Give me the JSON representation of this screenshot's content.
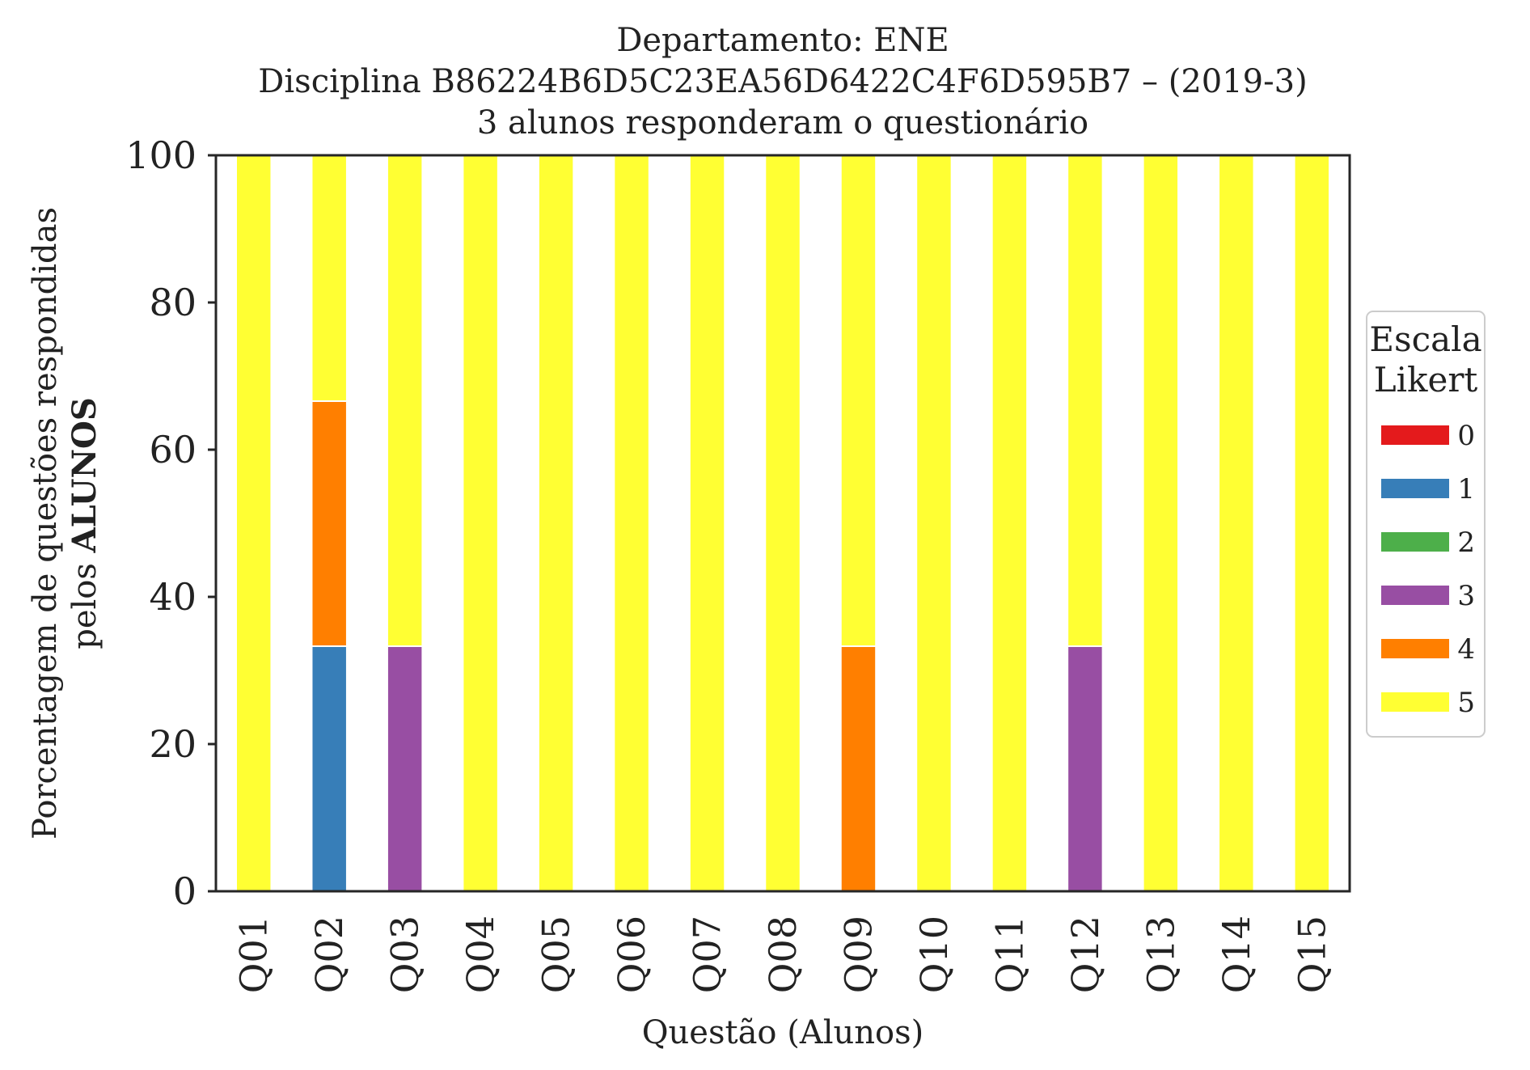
{
  "chart_data": {
    "type": "bar",
    "stacked": true,
    "title_lines": [
      "Departamento: ENE",
      "Disciplina B86224B6D5C23EA56D6422C4F6D595B7 – (2019-3)",
      "3 alunos responderam o questionário"
    ],
    "xlabel": "Questão (Alunos)",
    "ylabel_line1": "Porcentagem de questões respondidas",
    "ylabel_line2_prefix": "pelos ",
    "ylabel_line2_bold": "ALUNOS",
    "ylim": [
      0,
      100
    ],
    "yticks": [
      "0",
      "20",
      "40",
      "60",
      "80",
      "100"
    ],
    "categories": [
      "Q01",
      "Q02",
      "Q03",
      "Q04",
      "Q05",
      "Q06",
      "Q07",
      "Q08",
      "Q09",
      "Q10",
      "Q11",
      "Q12",
      "Q13",
      "Q14",
      "Q15"
    ],
    "legend": {
      "title_line1": "Escala",
      "title_line2": "Likert",
      "placement": "right-center"
    },
    "grid": false,
    "series": [
      {
        "name": "0",
        "color": "#e41a1c",
        "values": [
          0,
          0,
          0,
          0,
          0,
          0,
          0,
          0,
          0,
          0,
          0,
          0,
          0,
          0,
          0
        ]
      },
      {
        "name": "1",
        "color": "#377eb8",
        "values": [
          0,
          33.3,
          0,
          0,
          0,
          0,
          0,
          0,
          0,
          0,
          0,
          0,
          0,
          0,
          0
        ]
      },
      {
        "name": "2",
        "color": "#4daf4a",
        "values": [
          0,
          0,
          0,
          0,
          0,
          0,
          0,
          0,
          0,
          0,
          0,
          0,
          0,
          0,
          0
        ]
      },
      {
        "name": "3",
        "color": "#984ea3",
        "values": [
          0,
          0,
          33.3,
          0,
          0,
          0,
          0,
          0,
          0,
          0,
          0,
          33.3,
          0,
          0,
          0
        ]
      },
      {
        "name": "4",
        "color": "#ff7f00",
        "values": [
          0,
          33.3,
          0,
          0,
          0,
          0,
          0,
          0,
          33.3,
          0,
          0,
          0,
          0,
          0,
          0
        ]
      },
      {
        "name": "5",
        "color": "#ffff33",
        "values": [
          100,
          33.4,
          66.7,
          100,
          100,
          100,
          100,
          100,
          66.7,
          100,
          100,
          66.7,
          100,
          100,
          100
        ]
      }
    ]
  }
}
